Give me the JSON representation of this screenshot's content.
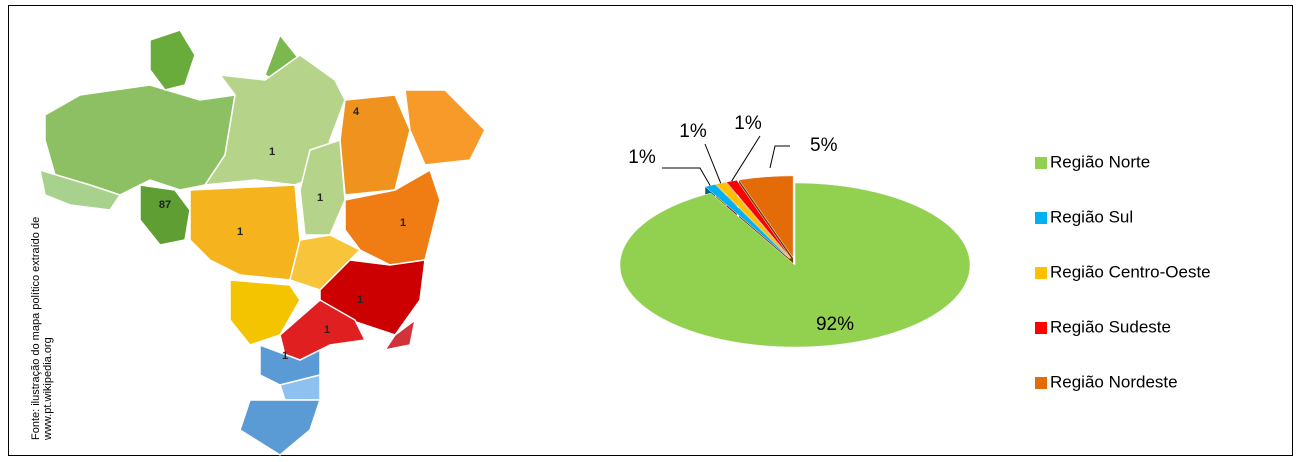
{
  "caption": {
    "lines": [
      "Fonte: ilustração do mapa político extraído de",
      "www.pt.wikipedia.org"
    ]
  },
  "map": {
    "labels": [
      "87",
      "1",
      "1",
      "4",
      "1",
      "1",
      "1",
      "1",
      "1"
    ]
  },
  "chart_data": {
    "type": "pie",
    "categories": [
      "Região Norte",
      "Região Sul",
      "Região Centro-Oeste",
      "Região Sudeste",
      "Região Nordeste"
    ],
    "values": [
      92,
      1,
      1,
      1,
      5
    ],
    "value_labels": [
      "92%",
      "1%",
      "1%",
      "1%",
      "5%"
    ],
    "colors": [
      "#92d050",
      "#00b0f0",
      "#ffc000",
      "#ff0000",
      "#e36c09"
    ],
    "exploded": [
      false,
      true,
      true,
      true,
      true
    ],
    "legend": "right"
  }
}
